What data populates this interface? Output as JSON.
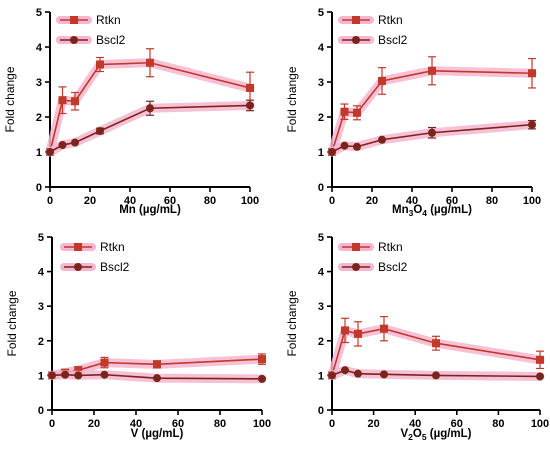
{
  "chart_data": [
    {
      "type": "line",
      "x": [
        0,
        6.25,
        12.5,
        25,
        50,
        100
      ],
      "xlim": [
        0,
        100
      ],
      "ylim": [
        0,
        5
      ],
      "xticks": [
        0,
        20,
        40,
        60,
        80,
        100
      ],
      "yticks": [
        0,
        1,
        2,
        3,
        4,
        5
      ],
      "ylabel": "Fold change",
      "xlabel_parts": [
        {
          "t": "Mn (",
          "sub": false
        },
        {
          "t": "µg/mL)",
          "sub": false
        }
      ],
      "legend": "top-left",
      "series": [
        {
          "name": "Rtkn",
          "color": "#c0392b",
          "marker": "square",
          "values": [
            1.0,
            2.48,
            2.45,
            3.5,
            3.55,
            2.83
          ],
          "errors": [
            0.05,
            0.38,
            0.25,
            0.2,
            0.4,
            0.45
          ]
        },
        {
          "name": "Bscl2",
          "color": "#7b241c",
          "marker": "circle",
          "values": [
            1.0,
            1.2,
            1.27,
            1.6,
            2.25,
            2.33
          ],
          "errors": [
            0.05,
            0.05,
            0.05,
            0.08,
            0.2,
            0.15
          ]
        }
      ]
    },
    {
      "type": "line",
      "x": [
        0,
        6.25,
        12.5,
        25,
        50,
        100
      ],
      "xlim": [
        0,
        100
      ],
      "ylim": [
        0,
        5
      ],
      "xticks": [
        0,
        20,
        40,
        60,
        80,
        100
      ],
      "yticks": [
        0,
        1,
        2,
        3,
        4,
        5
      ],
      "ylabel": "Fold change",
      "xlabel_parts": [
        {
          "t": "Mn",
          "sub": false
        },
        {
          "t": "3",
          "sub": true
        },
        {
          "t": "O",
          "sub": false
        },
        {
          "t": "4",
          "sub": true
        },
        {
          "t": " (µg/mL)",
          "sub": false
        }
      ],
      "legend": "top-left",
      "series": [
        {
          "name": "Rtkn",
          "color": "#c0392b",
          "marker": "square",
          "values": [
            1.0,
            2.15,
            2.12,
            3.03,
            3.32,
            3.25
          ],
          "errors": [
            0.05,
            0.22,
            0.2,
            0.38,
            0.4,
            0.42
          ]
        },
        {
          "name": "Bscl2",
          "color": "#7b241c",
          "marker": "circle",
          "values": [
            1.0,
            1.18,
            1.15,
            1.35,
            1.55,
            1.78
          ],
          "errors": [
            0.05,
            0.05,
            0.05,
            0.05,
            0.15,
            0.12
          ]
        }
      ]
    },
    {
      "type": "line",
      "x": [
        0,
        6.25,
        12.5,
        25,
        50,
        100
      ],
      "xlim": [
        0,
        100
      ],
      "ylim": [
        0,
        5
      ],
      "xticks": [
        0,
        20,
        40,
        60,
        80,
        100
      ],
      "yticks": [
        0,
        1,
        2,
        3,
        4,
        5
      ],
      "ylabel": "Fold change",
      "xlabel_parts": [
        {
          "t": "V (",
          "sub": false
        },
        {
          "t": "µg/mL)",
          "sub": false
        }
      ],
      "legend": "top-left",
      "series": [
        {
          "name": "Rtkn",
          "color": "#c0392b",
          "marker": "square",
          "values": [
            1.0,
            1.08,
            1.15,
            1.37,
            1.32,
            1.47
          ],
          "errors": [
            0.05,
            0.08,
            0.1,
            0.15,
            0.1,
            0.15
          ]
        },
        {
          "name": "Bscl2",
          "color": "#7b241c",
          "marker": "circle",
          "values": [
            1.0,
            1.02,
            1.0,
            1.02,
            0.92,
            0.9
          ],
          "errors": [
            0.05,
            0.05,
            0.05,
            0.05,
            0.05,
            0.05
          ]
        }
      ]
    },
    {
      "type": "line",
      "x": [
        0,
        6.25,
        12.5,
        25,
        50,
        100
      ],
      "xlim": [
        0,
        100
      ],
      "ylim": [
        0,
        5
      ],
      "xticks": [
        0,
        20,
        40,
        60,
        80,
        100
      ],
      "yticks": [
        0,
        1,
        2,
        3,
        4,
        5
      ],
      "ylabel": "Fold change",
      "xlabel_parts": [
        {
          "t": "V",
          "sub": false
        },
        {
          "t": "2",
          "sub": true
        },
        {
          "t": "O",
          "sub": false
        },
        {
          "t": "5",
          "sub": true
        },
        {
          "t": " (µg/mL)",
          "sub": false
        }
      ],
      "legend": "top-left",
      "series": [
        {
          "name": "Rtkn",
          "color": "#c0392b",
          "marker": "square",
          "values": [
            1.0,
            2.3,
            2.2,
            2.35,
            1.93,
            1.45
          ],
          "errors": [
            0.05,
            0.35,
            0.35,
            0.35,
            0.2,
            0.25
          ]
        },
        {
          "name": "Bscl2",
          "color": "#7b241c",
          "marker": "circle",
          "values": [
            1.0,
            1.15,
            1.05,
            1.03,
            1.0,
            0.97
          ],
          "errors": [
            0.05,
            0.05,
            0.05,
            0.05,
            0.06,
            0.06
          ]
        }
      ]
    }
  ]
}
